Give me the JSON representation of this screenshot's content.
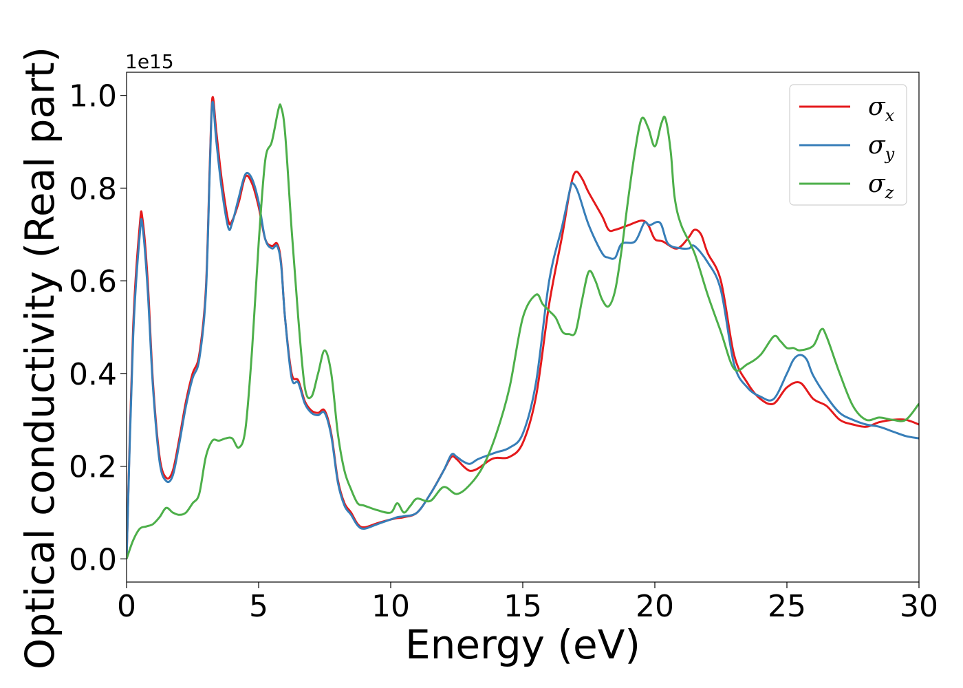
{
  "chart_data": {
    "type": "line",
    "title": "",
    "xlabel": "Energy (eV)",
    "ylabel": "Optical conductivity (Real part)",
    "y_offset_label": "1e15",
    "xlim": [
      0,
      30
    ],
    "ylim": [
      -0.05,
      1.05
    ],
    "x_ticks": [
      0,
      5,
      10,
      15,
      20,
      25,
      30
    ],
    "x_tick_labels": [
      "0",
      "5",
      "10",
      "15",
      "20",
      "25",
      "30"
    ],
    "y_ticks": [
      0.0,
      0.2,
      0.4,
      0.6,
      0.8,
      1.0
    ],
    "y_tick_labels": [
      "0.0",
      "0.2",
      "0.4",
      "0.6",
      "0.8",
      "1.0"
    ],
    "grid": false,
    "legend_position": "top-right",
    "series": [
      {
        "name": "σ",
        "subscript": "x",
        "color": "#e41a1c",
        "points": [
          [
            0,
            0
          ],
          [
            0.25,
            0.5
          ],
          [
            0.5,
            0.72
          ],
          [
            0.6,
            0.735
          ],
          [
            0.8,
            0.6
          ],
          [
            1.0,
            0.38
          ],
          [
            1.25,
            0.22
          ],
          [
            1.5,
            0.175
          ],
          [
            1.75,
            0.19
          ],
          [
            2.0,
            0.26
          ],
          [
            2.25,
            0.34
          ],
          [
            2.5,
            0.4
          ],
          [
            2.75,
            0.44
          ],
          [
            3.0,
            0.58
          ],
          [
            3.15,
            0.85
          ],
          [
            3.25,
            0.995
          ],
          [
            3.4,
            0.92
          ],
          [
            3.6,
            0.82
          ],
          [
            3.85,
            0.73
          ],
          [
            4.0,
            0.73
          ],
          [
            4.25,
            0.77
          ],
          [
            4.5,
            0.825
          ],
          [
            4.75,
            0.81
          ],
          [
            5.0,
            0.76
          ],
          [
            5.25,
            0.69
          ],
          [
            5.5,
            0.675
          ],
          [
            5.7,
            0.68
          ],
          [
            5.85,
            0.64
          ],
          [
            6.0,
            0.52
          ],
          [
            6.25,
            0.4
          ],
          [
            6.5,
            0.385
          ],
          [
            6.75,
            0.34
          ],
          [
            7.0,
            0.32
          ],
          [
            7.25,
            0.315
          ],
          [
            7.5,
            0.32
          ],
          [
            7.75,
            0.27
          ],
          [
            8.0,
            0.17
          ],
          [
            8.25,
            0.12
          ],
          [
            8.5,
            0.1
          ],
          [
            8.75,
            0.075
          ],
          [
            9.0,
            0.068
          ],
          [
            9.5,
            0.077
          ],
          [
            10.0,
            0.085
          ],
          [
            10.25,
            0.088
          ],
          [
            10.5,
            0.09
          ],
          [
            11.0,
            0.1
          ],
          [
            11.5,
            0.14
          ],
          [
            12.0,
            0.19
          ],
          [
            12.3,
            0.22
          ],
          [
            12.5,
            0.215
          ],
          [
            12.75,
            0.2
          ],
          [
            13.0,
            0.19
          ],
          [
            13.3,
            0.195
          ],
          [
            13.75,
            0.213
          ],
          [
            14.0,
            0.218
          ],
          [
            14.5,
            0.22
          ],
          [
            15.0,
            0.25
          ],
          [
            15.5,
            0.35
          ],
          [
            16.0,
            0.55
          ],
          [
            16.5,
            0.7
          ],
          [
            16.8,
            0.8
          ],
          [
            17.0,
            0.835
          ],
          [
            17.25,
            0.82
          ],
          [
            17.5,
            0.79
          ],
          [
            18.0,
            0.74
          ],
          [
            18.25,
            0.71
          ],
          [
            18.5,
            0.71
          ],
          [
            19.0,
            0.72
          ],
          [
            19.5,
            0.73
          ],
          [
            19.75,
            0.72
          ],
          [
            20.0,
            0.69
          ],
          [
            20.3,
            0.685
          ],
          [
            20.75,
            0.67
          ],
          [
            21.0,
            0.675
          ],
          [
            21.3,
            0.695
          ],
          [
            21.5,
            0.71
          ],
          [
            21.75,
            0.7
          ],
          [
            22.0,
            0.66
          ],
          [
            22.5,
            0.6
          ],
          [
            23.0,
            0.44
          ],
          [
            23.5,
            0.38
          ],
          [
            24.0,
            0.345
          ],
          [
            24.5,
            0.335
          ],
          [
            25.0,
            0.37
          ],
          [
            25.5,
            0.38
          ],
          [
            26.0,
            0.345
          ],
          [
            26.5,
            0.33
          ],
          [
            27.0,
            0.3
          ],
          [
            27.5,
            0.29
          ],
          [
            28.0,
            0.285
          ],
          [
            28.5,
            0.295
          ],
          [
            29.0,
            0.3
          ],
          [
            29.5,
            0.3
          ],
          [
            30.0,
            0.29
          ]
        ]
      },
      {
        "name": "σ",
        "subscript": "y",
        "color": "#377eb8",
        "points": [
          [
            0,
            0
          ],
          [
            0.25,
            0.48
          ],
          [
            0.5,
            0.7
          ],
          [
            0.6,
            0.72
          ],
          [
            0.8,
            0.58
          ],
          [
            1.0,
            0.37
          ],
          [
            1.25,
            0.21
          ],
          [
            1.5,
            0.168
          ],
          [
            1.75,
            0.18
          ],
          [
            2.0,
            0.25
          ],
          [
            2.25,
            0.33
          ],
          [
            2.5,
            0.39
          ],
          [
            2.75,
            0.43
          ],
          [
            3.0,
            0.57
          ],
          [
            3.15,
            0.84
          ],
          [
            3.25,
            0.985
          ],
          [
            3.4,
            0.9
          ],
          [
            3.6,
            0.8
          ],
          [
            3.85,
            0.715
          ],
          [
            4.0,
            0.725
          ],
          [
            4.25,
            0.78
          ],
          [
            4.5,
            0.83
          ],
          [
            4.75,
            0.82
          ],
          [
            5.0,
            0.77
          ],
          [
            5.25,
            0.69
          ],
          [
            5.5,
            0.67
          ],
          [
            5.7,
            0.675
          ],
          [
            5.85,
            0.635
          ],
          [
            6.0,
            0.52
          ],
          [
            6.25,
            0.39
          ],
          [
            6.5,
            0.38
          ],
          [
            6.75,
            0.335
          ],
          [
            7.0,
            0.315
          ],
          [
            7.25,
            0.31
          ],
          [
            7.5,
            0.315
          ],
          [
            7.75,
            0.265
          ],
          [
            8.0,
            0.165
          ],
          [
            8.25,
            0.115
          ],
          [
            8.5,
            0.095
          ],
          [
            8.75,
            0.072
          ],
          [
            9.0,
            0.065
          ],
          [
            9.5,
            0.075
          ],
          [
            10.0,
            0.085
          ],
          [
            10.25,
            0.09
          ],
          [
            10.5,
            0.092
          ],
          [
            11.0,
            0.1
          ],
          [
            11.5,
            0.14
          ],
          [
            12.0,
            0.19
          ],
          [
            12.3,
            0.225
          ],
          [
            12.5,
            0.22
          ],
          [
            12.75,
            0.21
          ],
          [
            13.0,
            0.205
          ],
          [
            13.3,
            0.215
          ],
          [
            13.75,
            0.225
          ],
          [
            14.0,
            0.23
          ],
          [
            14.5,
            0.24
          ],
          [
            15.0,
            0.27
          ],
          [
            15.5,
            0.38
          ],
          [
            16.0,
            0.6
          ],
          [
            16.5,
            0.72
          ],
          [
            16.8,
            0.8
          ],
          [
            16.9,
            0.81
          ],
          [
            17.1,
            0.79
          ],
          [
            17.5,
            0.72
          ],
          [
            18.0,
            0.66
          ],
          [
            18.25,
            0.65
          ],
          [
            18.5,
            0.65
          ],
          [
            18.75,
            0.68
          ],
          [
            19.25,
            0.685
          ],
          [
            19.6,
            0.725
          ],
          [
            19.8,
            0.72
          ],
          [
            20.2,
            0.725
          ],
          [
            20.5,
            0.68
          ],
          [
            21.0,
            0.67
          ],
          [
            21.3,
            0.67
          ],
          [
            21.5,
            0.675
          ],
          [
            22.0,
            0.64
          ],
          [
            22.5,
            0.58
          ],
          [
            23.0,
            0.42
          ],
          [
            23.5,
            0.37
          ],
          [
            24.0,
            0.35
          ],
          [
            24.5,
            0.345
          ],
          [
            25.0,
            0.4
          ],
          [
            25.25,
            0.43
          ],
          [
            25.5,
            0.44
          ],
          [
            25.75,
            0.43
          ],
          [
            26.0,
            0.395
          ],
          [
            26.5,
            0.35
          ],
          [
            27.0,
            0.315
          ],
          [
            27.5,
            0.3
          ],
          [
            28.0,
            0.29
          ],
          [
            28.5,
            0.285
          ],
          [
            29.0,
            0.275
          ],
          [
            29.5,
            0.265
          ],
          [
            30.0,
            0.26
          ]
        ]
      },
      {
        "name": "σ",
        "subscript": "z",
        "color": "#4daf4a",
        "points": [
          [
            0,
            0
          ],
          [
            0.25,
            0.04
          ],
          [
            0.5,
            0.065
          ],
          [
            0.75,
            0.07
          ],
          [
            1.0,
            0.075
          ],
          [
            1.25,
            0.09
          ],
          [
            1.5,
            0.11
          ],
          [
            1.75,
            0.1
          ],
          [
            2.0,
            0.095
          ],
          [
            2.25,
            0.1
          ],
          [
            2.5,
            0.12
          ],
          [
            2.75,
            0.14
          ],
          [
            3.0,
            0.22
          ],
          [
            3.25,
            0.255
          ],
          [
            3.5,
            0.255
          ],
          [
            3.75,
            0.26
          ],
          [
            4.0,
            0.26
          ],
          [
            4.25,
            0.24
          ],
          [
            4.5,
            0.28
          ],
          [
            4.75,
            0.45
          ],
          [
            5.0,
            0.68
          ],
          [
            5.25,
            0.86
          ],
          [
            5.5,
            0.9
          ],
          [
            5.75,
            0.97
          ],
          [
            5.85,
            0.975
          ],
          [
            6.0,
            0.92
          ],
          [
            6.25,
            0.71
          ],
          [
            6.5,
            0.52
          ],
          [
            6.75,
            0.37
          ],
          [
            7.0,
            0.35
          ],
          [
            7.25,
            0.4
          ],
          [
            7.5,
            0.45
          ],
          [
            7.75,
            0.4
          ],
          [
            8.0,
            0.27
          ],
          [
            8.25,
            0.19
          ],
          [
            8.5,
            0.15
          ],
          [
            8.75,
            0.12
          ],
          [
            9.0,
            0.115
          ],
          [
            9.5,
            0.105
          ],
          [
            10.0,
            0.1
          ],
          [
            10.25,
            0.12
          ],
          [
            10.5,
            0.1
          ],
          [
            10.75,
            0.115
          ],
          [
            11.0,
            0.13
          ],
          [
            11.5,
            0.125
          ],
          [
            12.0,
            0.155
          ],
          [
            12.5,
            0.14
          ],
          [
            13.0,
            0.16
          ],
          [
            13.5,
            0.2
          ],
          [
            14.0,
            0.27
          ],
          [
            14.5,
            0.37
          ],
          [
            15.0,
            0.52
          ],
          [
            15.5,
            0.57
          ],
          [
            15.75,
            0.55
          ],
          [
            16.0,
            0.535
          ],
          [
            16.25,
            0.52
          ],
          [
            16.5,
            0.49
          ],
          [
            16.75,
            0.485
          ],
          [
            17.0,
            0.49
          ],
          [
            17.25,
            0.56
          ],
          [
            17.5,
            0.62
          ],
          [
            17.75,
            0.6
          ],
          [
            18.0,
            0.56
          ],
          [
            18.25,
            0.545
          ],
          [
            18.5,
            0.58
          ],
          [
            18.75,
            0.67
          ],
          [
            19.0,
            0.78
          ],
          [
            19.25,
            0.88
          ],
          [
            19.5,
            0.95
          ],
          [
            19.75,
            0.93
          ],
          [
            20.0,
            0.89
          ],
          [
            20.25,
            0.94
          ],
          [
            20.4,
            0.95
          ],
          [
            20.6,
            0.88
          ],
          [
            20.75,
            0.78
          ],
          [
            21.0,
            0.72
          ],
          [
            21.5,
            0.66
          ],
          [
            22.0,
            0.57
          ],
          [
            22.5,
            0.49
          ],
          [
            23.0,
            0.41
          ],
          [
            23.5,
            0.42
          ],
          [
            24.0,
            0.44
          ],
          [
            24.5,
            0.48
          ],
          [
            24.75,
            0.47
          ],
          [
            25.0,
            0.455
          ],
          [
            25.25,
            0.455
          ],
          [
            25.5,
            0.45
          ],
          [
            26.0,
            0.46
          ],
          [
            26.3,
            0.495
          ],
          [
            26.5,
            0.48
          ],
          [
            27.0,
            0.4
          ],
          [
            27.5,
            0.33
          ],
          [
            28.0,
            0.3
          ],
          [
            28.5,
            0.305
          ],
          [
            29.0,
            0.3
          ],
          [
            29.5,
            0.3
          ],
          [
            30.0,
            0.335
          ]
        ]
      }
    ]
  }
}
